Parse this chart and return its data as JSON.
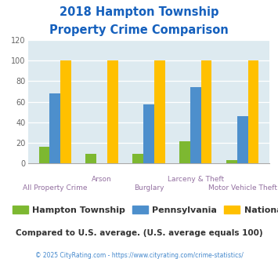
{
  "title_line1": "2018 Hampton Township",
  "title_line2": "Property Crime Comparison",
  "categories": [
    "All Property Crime",
    "Arson",
    "Burglary",
    "Larceny & Theft",
    "Motor Vehicle Theft"
  ],
  "hampton": [
    16,
    9,
    9,
    21,
    3
  ],
  "pennsylvania": [
    68,
    0,
    57,
    74,
    46
  ],
  "national": [
    100,
    100,
    100,
    100,
    100
  ],
  "colors": {
    "hampton": "#7db831",
    "pennsylvania": "#4d8fcc",
    "national": "#ffc000"
  },
  "ylim": [
    0,
    120
  ],
  "yticks": [
    0,
    20,
    40,
    60,
    80,
    100,
    120
  ],
  "background_color": "#ddeaf0",
  "title_color": "#1560bd",
  "xlabel_color": "#9370a0",
  "legend_text_color": "#333333",
  "note_text": "Compared to U.S. average. (U.S. average equals 100)",
  "note_color": "#333333",
  "footer_text": "© 2025 CityRating.com - https://www.cityrating.com/crime-statistics/",
  "footer_color": "#4488cc",
  "legend_labels": [
    "Hampton Township",
    "Pennsylvania",
    "National"
  ],
  "bar_width": 0.23,
  "title_fontsize": 10.5,
  "label_fontsize": 6.5,
  "legend_fontsize": 8,
  "note_fontsize": 7.5,
  "footer_fontsize": 5.5
}
